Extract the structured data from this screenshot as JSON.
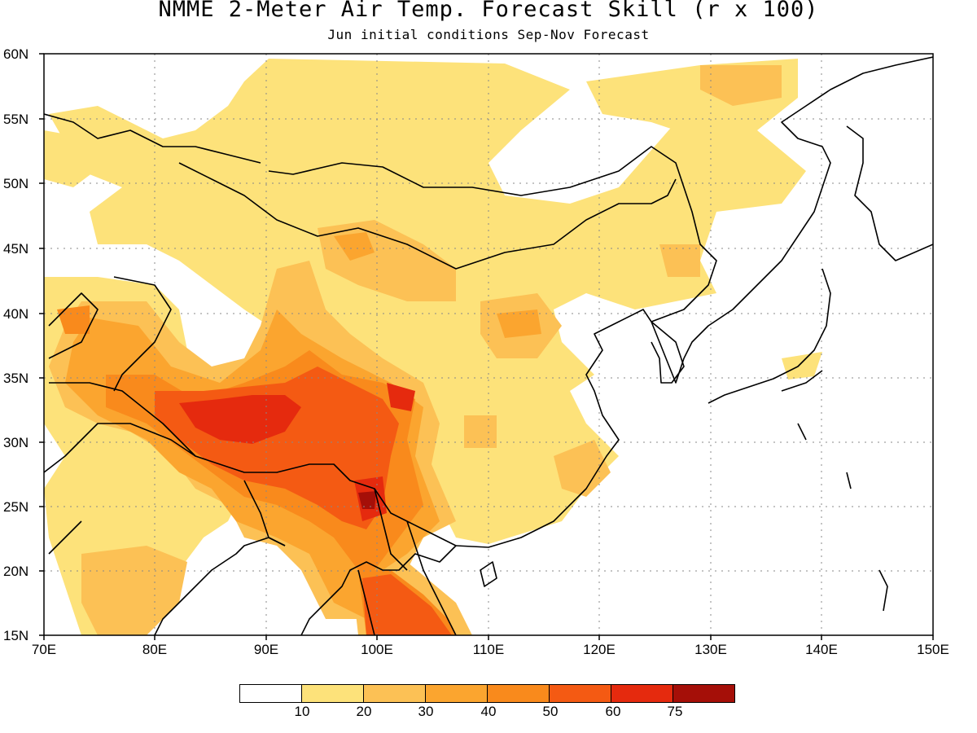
{
  "title": "NMME 2-Meter Air Temp. Forecast Skill (r x 100)",
  "subtitle": "Jun initial conditions  Sep-Nov Forecast",
  "axes": {
    "lat_labels": [
      "60N",
      "55N",
      "50N",
      "45N",
      "40N",
      "35N",
      "30N",
      "25N",
      "20N",
      "15N"
    ],
    "lon_labels": [
      "70E",
      "80E",
      "90E",
      "100E",
      "110E",
      "120E",
      "130E",
      "140E",
      "150E"
    ],
    "lat_range": [
      15,
      60
    ],
    "lon_range": [
      70,
      150
    ],
    "grid": "dotted"
  },
  "colorbar": {
    "labels": [
      "10",
      "20",
      "30",
      "40",
      "50",
      "60",
      "75"
    ],
    "colors": [
      "#ffffff",
      "#fde27a",
      "#fcc155",
      "#fba52f",
      "#f98a1c",
      "#f45a13",
      "#e52a0e",
      "#a50f08"
    ]
  },
  "map_colors": {
    "c10": "#fde27a",
    "c20": "#fcc155",
    "c30": "#fba52f",
    "c40": "#f98a1c",
    "c50": "#f45a13",
    "c60": "#e52a0e",
    "c75": "#a50f08"
  }
}
